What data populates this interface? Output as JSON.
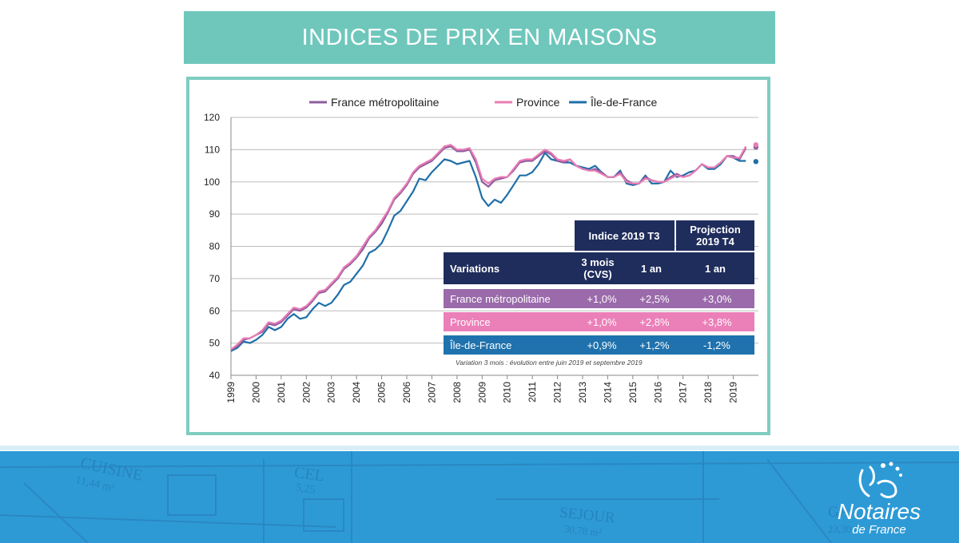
{
  "title": "INDICES DE PRIX EN MAISONS",
  "colors": {
    "band": "#6fc7bc",
    "frame": "#7ecdc2",
    "france": "#8e5c9e",
    "province": "#e97cb5",
    "idf": "#1f6fa8",
    "navy": "#1f2d5c",
    "footer": "#2d9ad6"
  },
  "chart_data": {
    "type": "line",
    "legend_position": "top",
    "grid": true,
    "ylim": [
      40,
      120
    ],
    "yticks": [
      40,
      50,
      60,
      70,
      80,
      90,
      100,
      110,
      120
    ],
    "xlim": [
      1999,
      2020
    ],
    "xticks": [
      "1999",
      "2000",
      "2001",
      "2002",
      "2003",
      "2004",
      "2005",
      "2006",
      "2007",
      "2008",
      "2009",
      "2010",
      "2011",
      "2012",
      "2013",
      "2014",
      "2015",
      "2016",
      "2017",
      "2018",
      "2019"
    ],
    "x": [
      1999,
      1999.25,
      1999.5,
      1999.75,
      2000,
      2000.25,
      2000.5,
      2000.75,
      2001,
      2001.25,
      2001.5,
      2001.75,
      2002,
      2002.25,
      2002.5,
      2002.75,
      2003,
      2003.25,
      2003.5,
      2003.75,
      2004,
      2004.25,
      2004.5,
      2004.75,
      2005,
      2005.25,
      2005.5,
      2005.75,
      2006,
      2006.25,
      2006.5,
      2006.75,
      2007,
      2007.25,
      2007.5,
      2007.75,
      2008,
      2008.25,
      2008.5,
      2008.75,
      2009,
      2009.25,
      2009.5,
      2009.75,
      2010,
      2010.25,
      2010.5,
      2010.75,
      2011,
      2011.25,
      2011.5,
      2011.75,
      2012,
      2012.25,
      2012.5,
      2012.75,
      2013,
      2013.25,
      2013.5,
      2013.75,
      2014,
      2014.25,
      2014.5,
      2014.75,
      2015,
      2015.25,
      2015.5,
      2015.75,
      2016,
      2016.25,
      2016.5,
      2016.75,
      2017,
      2017.25,
      2017.5,
      2017.75,
      2018,
      2018.25,
      2018.5,
      2018.75,
      2019,
      2019.25,
      2019.5
    ],
    "series": [
      {
        "name": "France métropolitaine",
        "values": [
          48,
          49,
          51,
          51.5,
          52.5,
          53.5,
          56,
          55.5,
          56.5,
          58.5,
          60.5,
          60,
          61,
          63,
          65.5,
          66,
          68,
          70,
          73,
          74.5,
          76.5,
          79,
          82.5,
          84.5,
          87,
          90.5,
          94.5,
          96.5,
          99,
          102.5,
          104.5,
          105.5,
          106.5,
          108.5,
          110.5,
          111,
          109.5,
          109.5,
          110,
          106,
          100,
          98.5,
          100.5,
          101,
          101.5,
          103.5,
          106,
          106.5,
          106.5,
          108,
          109.5,
          108.5,
          106.5,
          106,
          107,
          105,
          104,
          103.5,
          104,
          103,
          101.5,
          101.5,
          103,
          100.5,
          99.5,
          99.5,
          101.5,
          100.5,
          100,
          100,
          101.5,
          102.5,
          101.5,
          102,
          103.5,
          105.5,
          104.5,
          104.5,
          106,
          108,
          108,
          107,
          110.5
        ],
        "projection": 110.8
      },
      {
        "name": "Province",
        "values": [
          48,
          49.5,
          51.5,
          51.5,
          52.5,
          54,
          56.5,
          56,
          57,
          59,
          61,
          60.5,
          61.5,
          63.5,
          66,
          66.5,
          68.5,
          70.5,
          73.5,
          75,
          77,
          80,
          83,
          85,
          88,
          91,
          95,
          97,
          99.5,
          103,
          105,
          106,
          107,
          109,
          111,
          111.5,
          110,
          110,
          110.5,
          107,
          101,
          99.5,
          101,
          101.5,
          101.5,
          104,
          106.5,
          107,
          107,
          108.5,
          110,
          109,
          107,
          106.5,
          107,
          105,
          104,
          103.5,
          103.5,
          102.5,
          101.5,
          101.5,
          102.5,
          100,
          99.5,
          99.5,
          101,
          100.5,
          100,
          100,
          101,
          102,
          101.5,
          102,
          103.5,
          105.5,
          104.5,
          104.5,
          106,
          108,
          107.5,
          107.5,
          111
        ],
        "projection": 111.5
      },
      {
        "name": "Île-de-France",
        "values": [
          47.5,
          48.5,
          50.5,
          50,
          51,
          52.5,
          55,
          54,
          55,
          57.5,
          59,
          57.5,
          58,
          60.5,
          62.5,
          61.5,
          62.5,
          65,
          68,
          69,
          71.5,
          74,
          78,
          79,
          81,
          85,
          89.5,
          91,
          94,
          97,
          101,
          100.5,
          103,
          105,
          107,
          106.5,
          105.5,
          106,
          106.5,
          101.5,
          95,
          92.5,
          94.5,
          93.5,
          96,
          99,
          102,
          102,
          103,
          105.5,
          109,
          107,
          106.5,
          106,
          106,
          105,
          104.5,
          104,
          105,
          103,
          101.5,
          101.5,
          103.5,
          99.5,
          99,
          99.5,
          102,
          99.5,
          99.5,
          100,
          103.5,
          101.5,
          102,
          103,
          103.5,
          105.5,
          104,
          104,
          105.5,
          108,
          107.5,
          106.5,
          106.5
        ],
        "projection": 106.3
      }
    ]
  },
  "table": {
    "header1": {
      "group_a": "Indice 2019 T3",
      "group_b": "Projection 2019 T4"
    },
    "header2": {
      "label": "Variations",
      "col1": "3 mois (CVS)",
      "col2": "1 an",
      "col3": "1 an"
    },
    "rows": [
      {
        "label": "France métropolitaine",
        "v1": "+1,0%",
        "v2": "+2,5%",
        "v3": "+3,0%",
        "color": "#9a6aaa"
      },
      {
        "label": "Province",
        "v1": "+1,0%",
        "v2": "+2,8%",
        "v3": "+3,8%",
        "color": "#eb7fb8"
      },
      {
        "label": "Île-de-France",
        "v1": "+0,9%",
        "v2": "+1,2%",
        "v3": "-1,2%",
        "color": "#1f72ad"
      }
    ],
    "note": "Variation 3 mois : évolution entre juin 2019 et septembre 2019"
  },
  "footer": {
    "plan_labels": [
      "CUISINE",
      "11,44 m²",
      "CEL",
      "5,25",
      "SEJOUR",
      "30,78 m²",
      "GA",
      "23,30"
    ],
    "logo_line1": "Notaires",
    "logo_line2": "de France"
  }
}
